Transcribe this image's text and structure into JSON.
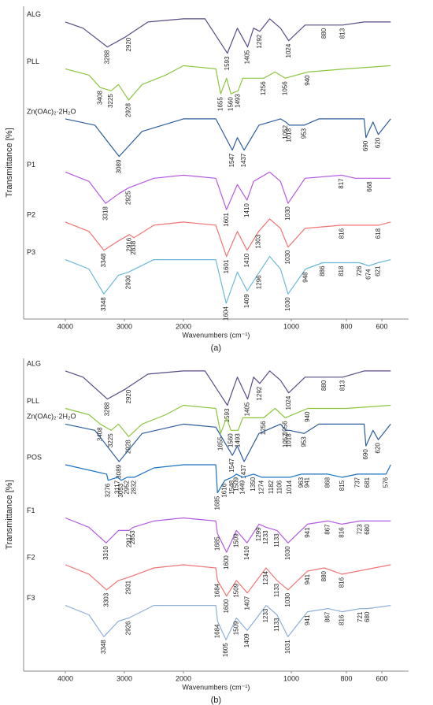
{
  "chart_data": [
    {
      "type": "line",
      "panel_label": "(a)",
      "xlabel": "Wavenumbers (cm⁻¹)",
      "ylabel": "Transmittance [%]",
      "xlim": [
        4600,
        450
      ],
      "xticks": [
        4000,
        3000,
        2000,
        1000,
        800,
        600
      ],
      "ylim": [
        0,
        100
      ],
      "series": [
        {
          "name": "ALG",
          "color": "#5a4a86",
          "x": [
            4000,
            3700,
            3288,
            3000,
            2920,
            2600,
            2000,
            1800,
            1593,
            1500,
            1405,
            1350,
            1292,
            1200,
            1100,
            1024,
            950,
            880,
            813,
            700,
            550
          ],
          "values": [
            95,
            93,
            87,
            90,
            91,
            95,
            96,
            96,
            85,
            93,
            87,
            93,
            92,
            96,
            93,
            89,
            94,
            94,
            94,
            95,
            95
          ],
          "peaks": [
            3288,
            2920,
            1593,
            1405,
            1292,
            1024,
            880,
            813
          ]
        },
        {
          "name": "PLL",
          "color": "#8cc63f",
          "x": [
            4000,
            3600,
            3408,
            3225,
            3100,
            2928,
            2700,
            2300,
            2000,
            1700,
            1655,
            1600,
            1560,
            1493,
            1450,
            1256,
            1150,
            1056,
            940,
            800,
            550
          ],
          "values": [
            80,
            78,
            74,
            73,
            75,
            70,
            75,
            78,
            81,
            80,
            72,
            77,
            72,
            73,
            77,
            77,
            79,
            77,
            79,
            80,
            81
          ],
          "peaks": [
            3408,
            3225,
            2928,
            1655,
            1560,
            1493,
            1256,
            1056,
            940
          ]
        },
        {
          "name": "Zn(OAc)₂·2H₂O",
          "color": "#2d5d9c",
          "x": [
            4000,
            3500,
            3089,
            2700,
            2000,
            1700,
            1547,
            1500,
            1437,
            1300,
            1100,
            1052,
            1018,
            953,
            900,
            700,
            690,
            650,
            620,
            550
          ],
          "values": [
            64,
            62,
            52,
            60,
            64,
            64,
            54,
            58,
            54,
            62,
            64,
            63,
            62,
            62,
            64,
            64,
            58,
            63,
            59,
            64
          ],
          "peaks": [
            3089,
            1547,
            1437,
            1052,
            1018,
            953,
            690,
            620
          ]
        },
        {
          "name": "P1",
          "color": "#b45be0",
          "x": [
            4000,
            3600,
            3318,
            3100,
            2925,
            2500,
            2000,
            1700,
            1601,
            1500,
            1410,
            1350,
            1200,
            1100,
            1030,
            950,
            817,
            750,
            668,
            550
          ],
          "values": [
            47,
            44,
            37,
            40,
            42,
            45,
            46,
            45,
            35,
            43,
            38,
            44,
            47,
            44,
            37,
            45,
            46,
            45,
            45,
            45
          ],
          "peaks": [
            3318,
            2925,
            1601,
            1410,
            1030,
            817,
            668
          ]
        },
        {
          "name": "P2",
          "color": "#f07575",
          "x": [
            4000,
            3600,
            3348,
            3100,
            2916,
            2838,
            2500,
            2000,
            1700,
            1601,
            1500,
            1410,
            1303,
            1200,
            1100,
            1030,
            950,
            816,
            618,
            550
          ],
          "values": [
            31,
            28,
            22,
            25,
            27,
            26,
            30,
            31,
            30,
            20,
            28,
            22,
            28,
            32,
            29,
            23,
            29,
            30,
            30,
            31
          ],
          "peaks": [
            3348,
            2916,
            2838,
            1601,
            1410,
            1303,
            1030,
            816,
            618
          ]
        },
        {
          "name": "P3",
          "color": "#6cbad8",
          "x": [
            4000,
            3600,
            3348,
            3100,
            2930,
            2500,
            2000,
            1700,
            1604,
            1500,
            1409,
            1296,
            1200,
            1100,
            1030,
            948,
            886,
            818,
            726,
            674,
            621,
            550
          ],
          "values": [
            19,
            16,
            8,
            14,
            15,
            19,
            19,
            19,
            5,
            15,
            9,
            15,
            20,
            16,
            8,
            16,
            18,
            18,
            18,
            17,
            18,
            19
          ],
          "peaks": [
            3348,
            2930,
            1604,
            1409,
            1296,
            1030,
            948,
            886,
            818,
            726,
            674,
            621
          ]
        }
      ]
    },
    {
      "type": "line",
      "panel_label": "(b)",
      "xlabel": "Wavenumbers (cm⁻¹)",
      "ylabel": "Transmittance [%]",
      "xlim": [
        4600,
        450
      ],
      "xticks": [
        4000,
        3000,
        2000,
        1000,
        800,
        600
      ],
      "ylim": [
        0,
        100
      ],
      "series": [
        {
          "name": "ALG",
          "color": "#5a4a86",
          "x": [
            4000,
            3700,
            3288,
            3000,
            2920,
            2600,
            2000,
            1800,
            1593,
            1500,
            1405,
            1350,
            1292,
            1200,
            1100,
            1024,
            950,
            880,
            813,
            700,
            550
          ],
          "values": [
            96,
            94,
            87,
            90,
            91,
            95,
            96,
            96,
            85,
            94,
            87,
            94,
            92,
            96,
            93,
            89,
            94,
            94,
            94,
            96,
            96
          ],
          "peaks": [
            3288,
            2920,
            1593,
            1405,
            1292,
            1024,
            880,
            813
          ]
        },
        {
          "name": "PLL",
          "color": "#8cc63f",
          "x": [
            4000,
            3600,
            3408,
            3225,
            3100,
            2928,
            2700,
            2300,
            2000,
            1700,
            1655,
            1600,
            1560,
            1493,
            1450,
            1256,
            1150,
            1056,
            940,
            800,
            550
          ],
          "values": [
            84,
            82,
            79,
            77,
            79,
            75,
            79,
            82,
            85,
            84,
            76,
            81,
            77,
            77,
            81,
            81,
            84,
            81,
            84,
            84,
            85
          ],
          "peaks": [
            3408,
            3225,
            2928,
            1655,
            1560,
            1493,
            1256,
            1056,
            940
          ]
        },
        {
          "name": "Zn(OAc)₂·2H₂O",
          "color": "#2d5d9c",
          "x": [
            4000,
            3500,
            3089,
            2700,
            2000,
            1700,
            1547,
            1500,
            1437,
            1300,
            1100,
            1052,
            1018,
            953,
            900,
            700,
            690,
            650,
            620,
            550
          ],
          "values": [
            79,
            77,
            67,
            76,
            79,
            78,
            69,
            72,
            67,
            76,
            79,
            77,
            77,
            76,
            79,
            79,
            72,
            77,
            74,
            79
          ],
          "peaks": [
            3089,
            1547,
            1437,
            1052,
            1018,
            953,
            690,
            620
          ]
        },
        {
          "name": "POS",
          "color": "#1a72c4",
          "x": [
            4000,
            3300,
            3276,
            3117,
            3053,
            2952,
            2832,
            2500,
            2000,
            1700,
            1685,
            1616,
            1548,
            1509,
            1449,
            1350,
            1274,
            1182,
            1106,
            1014,
            963,
            941,
            868,
            815,
            737,
            681,
            576,
            550
          ],
          "values": [
            66,
            63,
            61,
            62,
            61,
            62,
            62,
            65,
            66,
            66,
            57,
            61,
            62,
            63,
            62,
            63,
            62,
            62,
            62,
            62,
            63,
            63,
            63,
            62,
            63,
            63,
            63,
            66
          ],
          "peaks": [
            3276,
            3117,
            3053,
            2952,
            2832,
            1685,
            1616,
            1548,
            1509,
            1449,
            1350,
            1274,
            1182,
            1106,
            1014,
            963,
            941,
            868,
            815,
            737,
            681,
            576
          ]
        },
        {
          "name": "F1",
          "color": "#b45be0",
          "x": [
            4000,
            3600,
            3310,
            3100,
            2917,
            2853,
            2500,
            2000,
            1700,
            1685,
            1600,
            1509,
            1410,
            1299,
            1233,
            1133,
            1030,
            941,
            867,
            816,
            723,
            680,
            550
          ],
          "values": [
            49,
            46,
            41,
            45,
            45,
            46,
            48,
            49,
            48,
            44,
            38,
            45,
            41,
            47,
            46,
            45,
            41,
            47,
            48,
            47,
            48,
            48,
            48
          ],
          "peaks": [
            3310,
            2917,
            2853,
            1685,
            1600,
            1509,
            1410,
            1299,
            1233,
            1133,
            1030,
            941,
            867,
            816,
            723,
            680
          ]
        },
        {
          "name": "F2",
          "color": "#f07575",
          "x": [
            4000,
            3600,
            3303,
            3100,
            2931,
            2500,
            2000,
            1700,
            1684,
            1600,
            1509,
            1407,
            1234,
            1133,
            1030,
            941,
            880,
            816,
            550
          ],
          "values": [
            34,
            31,
            26,
            29,
            30,
            33,
            34,
            33,
            29,
            24,
            29,
            25,
            33,
            29,
            26,
            32,
            33,
            31,
            34
          ],
          "peaks": [
            3303,
            2931,
            1684,
            1600,
            1509,
            1407,
            1234,
            1133,
            1030,
            941,
            880,
            816
          ]
        },
        {
          "name": "F3",
          "color": "#8fb0d8",
          "x": [
            4000,
            3600,
            3348,
            3100,
            2926,
            2500,
            2000,
            1700,
            1684,
            1605,
            1509,
            1409,
            1233,
            1133,
            1031,
            941,
            867,
            816,
            721,
            680,
            550
          ],
          "values": [
            21,
            18,
            11,
            16,
            17,
            21,
            21,
            21,
            16,
            10,
            17,
            13,
            21,
            18,
            11,
            19,
            20,
            19,
            20,
            20,
            21
          ],
          "peaks": [
            3348,
            2926,
            1684,
            1605,
            1509,
            1409,
            1233,
            1133,
            1031,
            941,
            867,
            816,
            721,
            680
          ]
        }
      ]
    }
  ]
}
